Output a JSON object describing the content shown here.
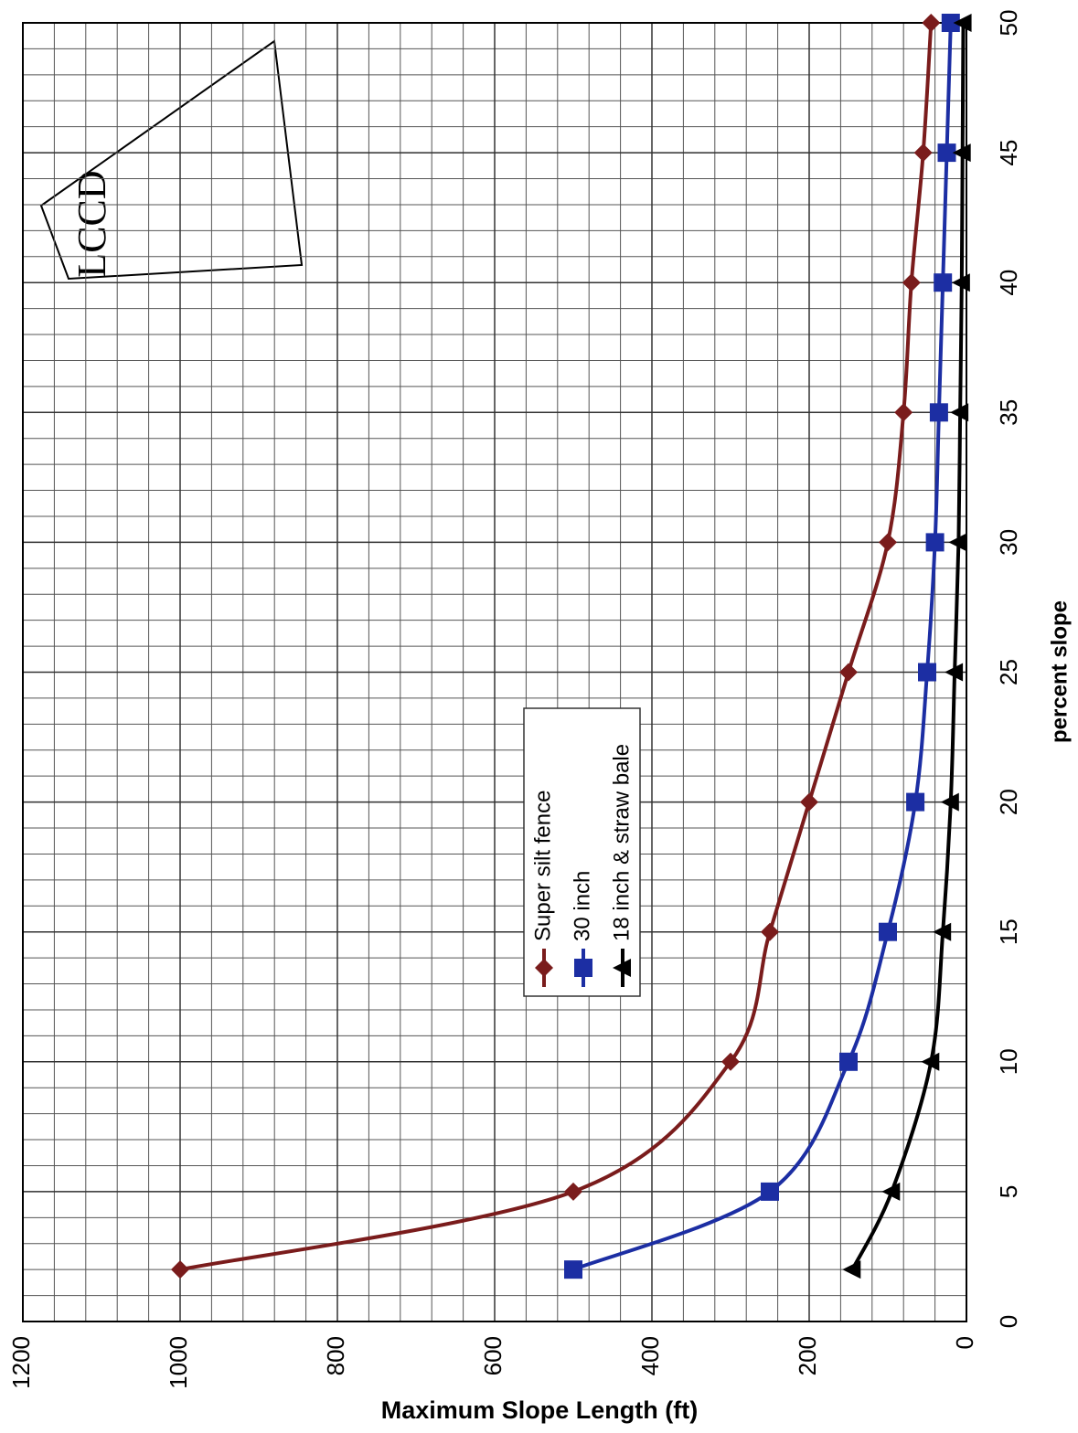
{
  "chart_data": {
    "type": "line",
    "x_label": "percent slope",
    "y_label": "Maximum Slope Length (ft)",
    "logo": "LCCD",
    "x": [
      2,
      5,
      10,
      15,
      20,
      25,
      30,
      35,
      40,
      45,
      50
    ],
    "series": [
      {
        "name": "Super silt fence",
        "color": "#7a1c1c",
        "marker": "diamond",
        "values": [
          1000,
          500,
          300,
          250,
          200,
          150,
          100,
          80,
          70,
          55,
          45
        ]
      },
      {
        "name": "30 inch",
        "color": "#1c2ea3",
        "marker": "square",
        "values": [
          500,
          250,
          150,
          100,
          65,
          50,
          40,
          35,
          30,
          25,
          20
        ]
      },
      {
        "name": "18 inch & straw bale",
        "color": "#000000",
        "marker": "triangle",
        "values": [
          145,
          95,
          45,
          30,
          20,
          15,
          10,
          8,
          6,
          5,
          4
        ]
      }
    ],
    "xlim": [
      0,
      50
    ],
    "xticks": [
      0,
      5,
      10,
      15,
      20,
      25,
      30,
      35,
      40,
      45,
      50
    ],
    "ylim": [
      0,
      1200
    ],
    "yticks": [
      0,
      200,
      400,
      600,
      800,
      1000,
      1200
    ],
    "grid": true,
    "minor_grid": {
      "x": 1,
      "y": 40
    }
  }
}
